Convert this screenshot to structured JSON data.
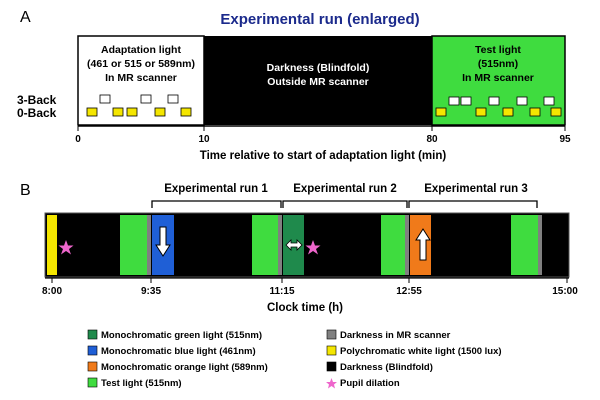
{
  "panelA": {
    "letter": "A",
    "title": "Experimental run (enlarged)",
    "box1": [
      "Adaptation light",
      "(461 or 515 or 589nm)",
      "In MR scanner"
    ],
    "box2": [
      "Darkness (Blindfold)",
      "Outside MR scanner"
    ],
    "box3": [
      "Test light",
      "(515nm)",
      "In MR scanner"
    ],
    "row3back": "3-Back",
    "row0back": "0-Back",
    "ticks": [
      "0",
      "10",
      "80",
      "95"
    ],
    "xlabel": "Time relative to start of adaptation light (min)"
  },
  "panelB": {
    "letter": "B",
    "runs": [
      "Experimental run 1",
      "Experimental run 2",
      "Experimental run 3"
    ],
    "ticks": [
      "8:00",
      "9:35",
      "11:15",
      "12:55",
      "15:00"
    ],
    "xlabel": "Clock time (h)"
  },
  "legend": {
    "left": [
      {
        "label": "Monochromatic green light (515nm)",
        "color": "#1f8a4c"
      },
      {
        "label": "Monochromatic blue light (461nm)",
        "color": "#1f5fd6"
      },
      {
        "label": "Monochromatic orange light (589nm)",
        "color": "#f07a1a"
      },
      {
        "label": "Test light (515nm)",
        "color": "#3fdc3f"
      }
    ],
    "right": [
      {
        "label": "Darkness in MR scanner",
        "color": "#808080"
      },
      {
        "label": "Polychromatic white light (1500 lux)",
        "color": "#f4e600"
      },
      {
        "label": "Darkness (Blindfold)",
        "color": "#000000"
      },
      {
        "label": "Pupil dilation",
        "color": "#ee66cc"
      }
    ]
  },
  "colors": {
    "title_blue": "#1b2a8c",
    "test_green": "#3fdc3f",
    "mono_green": "#1f8a4c",
    "blue": "#1f5fd6",
    "orange": "#f07a1a",
    "yellow": "#f4e600",
    "gray": "#808080",
    "pink": "#ee66cc"
  }
}
